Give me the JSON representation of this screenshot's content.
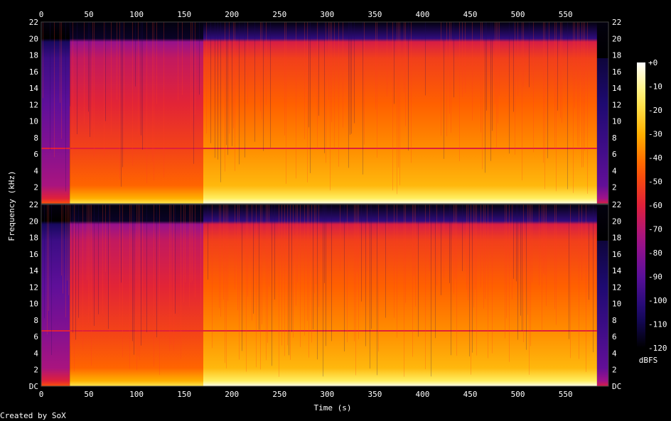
{
  "chart_data": {
    "type": "heatmap",
    "subtype": "spectrogram",
    "xlabel": "Time (s)",
    "ylabel": "Frequency (kHz)",
    "footer": "Created by SoX",
    "xlim": [
      0,
      595
    ],
    "x_ticks": [
      0,
      50,
      100,
      150,
      200,
      250,
      300,
      350,
      400,
      450,
      500,
      550
    ],
    "ylim": [
      0,
      22
    ],
    "y_ticks": [
      "DC",
      "2",
      "4",
      "6",
      "8",
      "10",
      "12",
      "14",
      "16",
      "18",
      "20",
      "22"
    ],
    "channels": 2,
    "colorbar": {
      "label": "dBFS",
      "range": [
        -120,
        0
      ],
      "ticks": [
        "+0",
        "-10",
        "-20",
        "-30",
        "-40",
        "-50",
        "-60",
        "-70",
        "-80",
        "-90",
        "-100",
        "-110",
        "-120"
      ]
    },
    "segments": [
      {
        "t_start": 0,
        "t_end": 30,
        "description_level_db": -85,
        "cutoff_khz": 20
      },
      {
        "t_start": 30,
        "t_end": 170,
        "description_level_db": -55,
        "cutoff_khz": 20
      },
      {
        "t_start": 170,
        "t_end": 583,
        "description_level_db": -40,
        "cutoff_khz": 20
      },
      {
        "t_start": 583,
        "t_end": 595,
        "description_level_db": -100,
        "cutoff_khz": 2
      }
    ],
    "tonal_line_khz": 6.7,
    "colors": [
      "#000000",
      "#1a0a6e",
      "#5a0f9a",
      "#a0128a",
      "#e0203a",
      "#ff5a00",
      "#ffb000",
      "#ffef60",
      "#ffffff"
    ]
  }
}
